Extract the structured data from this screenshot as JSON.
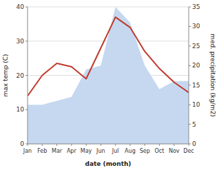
{
  "chart_data": {
    "type": "line",
    "categories": [
      "Jan",
      "Feb",
      "Mar",
      "Apr",
      "May",
      "Jun",
      "Jul",
      "Aug",
      "Sep",
      "Oct",
      "Nov",
      "Dec"
    ],
    "x_label": "date (month)",
    "y_label": "max temp (C)",
    "y2_label": "med. precipitation (kg/m2)",
    "ylim": [
      0,
      40
    ],
    "yticks": [
      0,
      10,
      20,
      30,
      40
    ],
    "y2lim": [
      0,
      35
    ],
    "y2ticks": [
      0,
      5,
      10,
      15,
      20,
      25,
      30,
      35
    ],
    "grid": true,
    "series": [
      {
        "type": "area",
        "axis": "y2",
        "color": "#c5d8f0",
        "values": [
          10,
          10,
          11,
          12,
          19,
          20,
          35,
          31,
          20,
          14,
          16,
          16
        ]
      },
      {
        "type": "line",
        "color": "#c0392b",
        "values": [
          14,
          20,
          23.5,
          22.5,
          19,
          28,
          37,
          34,
          27,
          22,
          18,
          15
        ]
      }
    ]
  }
}
